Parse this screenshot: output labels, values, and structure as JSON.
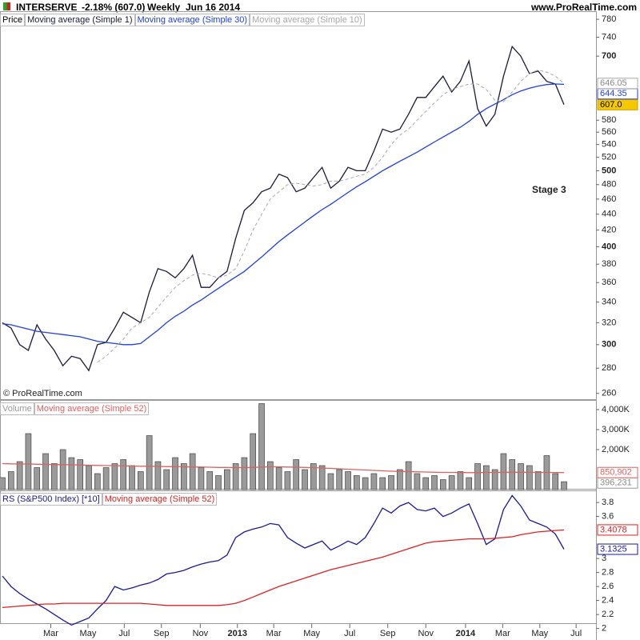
{
  "header": {
    "symbol": "INTERSERVE",
    "change": "-2.18% (607.0)",
    "period": "Weekly",
    "date": "Jun 16 2014",
    "site": "www.ProRealTime.com"
  },
  "chart_data": [
    {
      "type": "line",
      "panel_label": "Price",
      "annotation": "Stage 3",
      "copyright": "© ProRealTime.com",
      "log_scale": true,
      "ylim": [
        255,
        795
      ],
      "xlim": [
        -0.28,
        68.7
      ],
      "yticks": [
        260,
        280,
        300,
        320,
        340,
        360,
        380,
        400,
        420,
        440,
        460,
        480,
        500,
        520,
        540,
        560,
        580,
        700,
        740,
        780
      ],
      "series": [
        {
          "name": "Moving average (Simple 1)",
          "color": "#1a1a3a",
          "label_fill": "#f5c800",
          "last_label": "607.0",
          "values": [
            320,
            315,
            300,
            295,
            318,
            305,
            295,
            282,
            290,
            288,
            278,
            300,
            302,
            315,
            330,
            325,
            320,
            350,
            375,
            372,
            365,
            375,
            390,
            355,
            355,
            365,
            372,
            410,
            445,
            455,
            470,
            475,
            495,
            490,
            470,
            475,
            490,
            505,
            475,
            485,
            505,
            500,
            500,
            530,
            565,
            560,
            565,
            590,
            620,
            620,
            640,
            660,
            630,
            650,
            690,
            600,
            570,
            590,
            660,
            720,
            700,
            665,
            670,
            650,
            645,
            607
          ]
        },
        {
          "name": "Moving average (Simple 30)",
          "color": "#1f3fe0",
          "last_label": "644.35",
          "values": [
            319,
            318,
            316,
            314,
            312,
            311,
            310,
            309,
            308,
            307,
            305,
            303,
            302,
            301,
            300,
            300,
            301,
            307,
            313,
            320,
            326,
            331,
            337,
            342,
            348,
            354,
            360,
            366,
            372,
            380,
            388,
            397,
            406,
            414,
            422,
            430,
            438,
            446,
            453,
            461,
            469,
            477,
            484,
            492,
            500,
            507,
            514,
            521,
            528,
            536,
            544,
            552,
            560,
            568,
            578,
            590,
            600,
            608,
            616,
            625,
            632,
            637,
            641,
            644,
            645,
            644.35
          ]
        },
        {
          "name": "Moving average (Simple 10)",
          "color": "#a8a8a8",
          "dash": true,
          "last_label": "646.05",
          "values": [
            null,
            null,
            null,
            null,
            null,
            null,
            null,
            null,
            null,
            null,
            null,
            285,
            290,
            297,
            305,
            315,
            320,
            325,
            335,
            345,
            355,
            362,
            368,
            370,
            368,
            365,
            368,
            375,
            395,
            420,
            440,
            460,
            470,
            480,
            482,
            480,
            478,
            480,
            485,
            485,
            488,
            492,
            495,
            505,
            520,
            540,
            555,
            565,
            580,
            595,
            610,
            625,
            635,
            640,
            645,
            645,
            635,
            615,
            612,
            630,
            650,
            665,
            672,
            668,
            660,
            646.05
          ]
        }
      ]
    },
    {
      "type": "bar",
      "ylim": [
        0,
        4400000
      ],
      "xlim": [
        -0.28,
        68.7
      ],
      "yticks": [
        {
          "value": 2000000,
          "label": "2,000K"
        },
        {
          "value": 3000000,
          "label": "3,000K"
        },
        {
          "value": 4000000,
          "label": "4,000K"
        }
      ],
      "series": [
        {
          "name": "Volume",
          "type": "bar",
          "color": "#9a9a9a",
          "last_label": "396,231",
          "values": [
            600000,
            900000,
            1400000,
            2800000,
            1100000,
            1800000,
            1300000,
            2000000,
            1600000,
            1500000,
            1200000,
            800000,
            1100000,
            1300000,
            1500000,
            1200000,
            900000,
            2700000,
            1400000,
            1000000,
            1600000,
            1300000,
            1800000,
            1100000,
            900000,
            700000,
            1000000,
            1300000,
            1600000,
            2800000,
            4300000,
            1400000,
            1100000,
            900000,
            1500000,
            1000000,
            1300000,
            1200000,
            800000,
            1000000,
            900000,
            700000,
            600000,
            800000,
            600000,
            700000,
            1000000,
            1400000,
            800000,
            600000,
            700000,
            500000,
            700000,
            900000,
            600000,
            1300000,
            1200000,
            1000000,
            1800000,
            1500000,
            1300000,
            1200000,
            900000,
            1700000,
            800000,
            396231
          ]
        },
        {
          "name": "Moving average (Simple 52)",
          "type": "line",
          "color": "#e06060",
          "last_label": "850,902",
          "values": [
            1300000,
            1290000,
            1280000,
            1280000,
            1270000,
            1260000,
            1250000,
            1250000,
            1240000,
            1230000,
            1220000,
            1210000,
            1200000,
            1200000,
            1190000,
            1180000,
            1170000,
            1170000,
            1160000,
            1150000,
            1150000,
            1140000,
            1130000,
            1130000,
            1120000,
            1110000,
            1110000,
            1100000,
            1100000,
            1110000,
            1130000,
            1140000,
            1140000,
            1130000,
            1120000,
            1110000,
            1100000,
            1080000,
            1060000,
            1040000,
            1020000,
            1000000,
            980000,
            960000,
            940000,
            920000,
            910000,
            900000,
            890000,
            880000,
            870000,
            860000,
            860000,
            860000,
            850000,
            850000,
            860000,
            860000,
            870000,
            870000,
            870000,
            870000,
            860000,
            860000,
            855000,
            850902
          ]
        }
      ]
    },
    {
      "type": "line",
      "ylim": [
        1.95,
        3.95
      ],
      "xlim": [
        -0.28,
        68.7
      ],
      "yticks": [
        2,
        2.2,
        2.4,
        2.6,
        2.8,
        3,
        3.6,
        3.8
      ],
      "xticks": [
        {
          "value": 5.6,
          "label": "Mar"
        },
        {
          "value": 9.9,
          "label": "May"
        },
        {
          "value": 14.1,
          "label": "Jul"
        },
        {
          "value": 18.4,
          "label": "Sep"
        },
        {
          "value": 22.9,
          "label": "Nov"
        },
        {
          "value": 27.2,
          "label": "2013"
        },
        {
          "value": 31.4,
          "label": "Mar"
        },
        {
          "value": 35.8,
          "label": "May"
        },
        {
          "value": 40.2,
          "label": "Jul"
        },
        {
          "value": 44.6,
          "label": "Sep"
        },
        {
          "value": 49,
          "label": "Nov"
        },
        {
          "value": 53.6,
          "label": "2014"
        },
        {
          "value": 57.9,
          "label": "Mar"
        },
        {
          "value": 62.2,
          "label": "May"
        },
        {
          "value": 66.4,
          "label": "Jul"
        }
      ],
      "series": [
        {
          "name": "RS (S&P500 Index) [*10]",
          "color": "#1a1a9a",
          "last_label": "3.1325",
          "values": [
            2.75,
            2.6,
            2.5,
            2.42,
            2.35,
            2.28,
            2.2,
            2.12,
            2.05,
            2.1,
            2.15,
            2.28,
            2.4,
            2.6,
            2.55,
            2.58,
            2.62,
            2.65,
            2.7,
            2.78,
            2.8,
            2.83,
            2.88,
            2.92,
            2.95,
            2.97,
            3.05,
            3.3,
            3.38,
            3.42,
            3.45,
            3.5,
            3.48,
            3.3,
            3.22,
            3.15,
            3.2,
            3.25,
            3.12,
            3.18,
            3.25,
            3.2,
            3.3,
            3.5,
            3.72,
            3.65,
            3.75,
            3.8,
            3.7,
            3.68,
            3.72,
            3.6,
            3.65,
            3.72,
            3.78,
            3.5,
            3.2,
            3.28,
            3.7,
            3.9,
            3.75,
            3.55,
            3.5,
            3.45,
            3.35,
            3.1325
          ]
        },
        {
          "name": "Moving average (Simple 52)",
          "color": "#e02020",
          "last_label": "3.4078",
          "values": [
            2.3,
            2.31,
            2.32,
            2.33,
            2.34,
            2.35,
            2.35,
            2.36,
            2.36,
            2.36,
            2.36,
            2.36,
            2.36,
            2.36,
            2.36,
            2.36,
            2.36,
            2.35,
            2.34,
            2.33,
            2.33,
            2.33,
            2.33,
            2.33,
            2.33,
            2.33,
            2.34,
            2.36,
            2.4,
            2.45,
            2.5,
            2.55,
            2.6,
            2.64,
            2.68,
            2.72,
            2.76,
            2.8,
            2.84,
            2.87,
            2.9,
            2.93,
            2.96,
            2.99,
            3.02,
            3.06,
            3.1,
            3.14,
            3.18,
            3.22,
            3.24,
            3.25,
            3.26,
            3.27,
            3.28,
            3.28,
            3.28,
            3.29,
            3.3,
            3.31,
            3.34,
            3.36,
            3.38,
            3.39,
            3.4,
            3.4078
          ]
        }
      ]
    }
  ]
}
